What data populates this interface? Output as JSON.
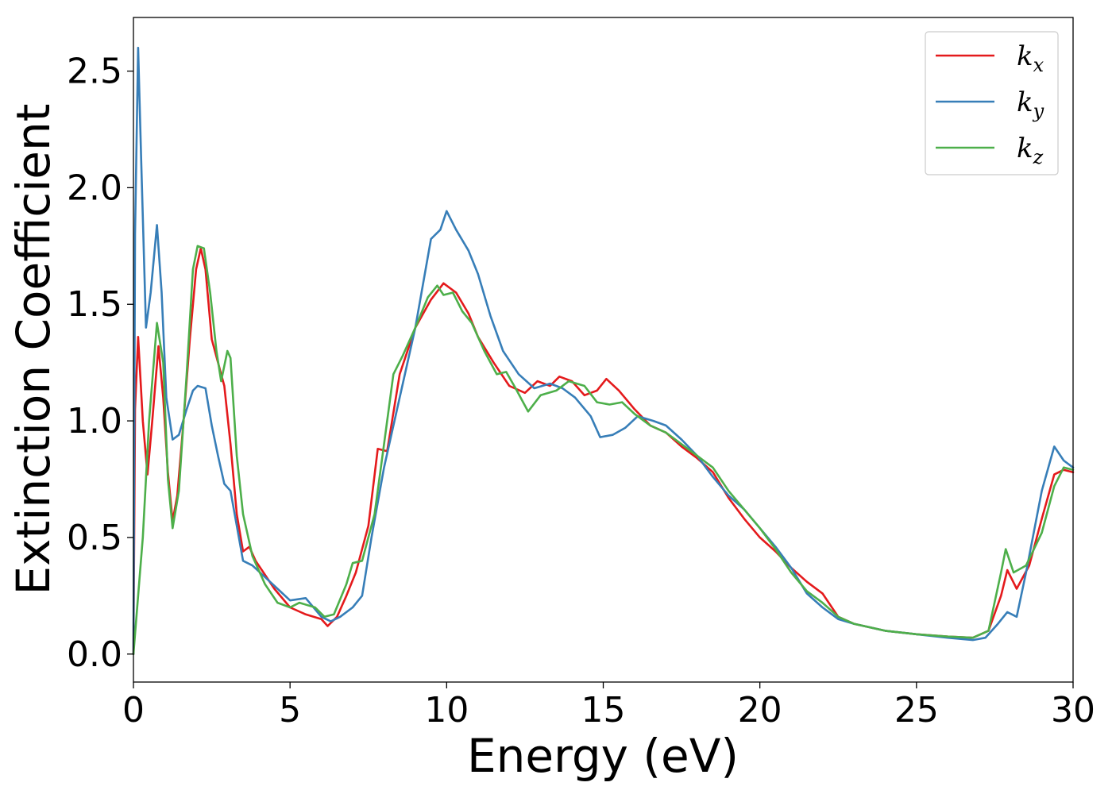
{
  "chart_data": {
    "type": "line",
    "xlabel": "Energy (eV)",
    "ylabel": "Extinction Coefficient",
    "xlim": [
      0,
      30
    ],
    "ylim": [
      -0.12,
      2.73
    ],
    "xticks": [
      "0",
      "5",
      "10",
      "15",
      "20",
      "25",
      "30"
    ],
    "yticks": [
      "0.0",
      "0.5",
      "1.0",
      "1.5",
      "2.0",
      "2.5"
    ],
    "grid": false,
    "legend_position": "top-right",
    "series": [
      {
        "name": "k",
        "subscript": "x",
        "color": "#e41a1c",
        "points": [
          [
            0,
            0.0
          ],
          [
            0.05,
            1.05
          ],
          [
            0.15,
            1.36
          ],
          [
            0.3,
            1.0
          ],
          [
            0.45,
            0.77
          ],
          [
            0.6,
            1.0
          ],
          [
            0.8,
            1.32
          ],
          [
            0.95,
            1.1
          ],
          [
            1.1,
            0.78
          ],
          [
            1.25,
            0.57
          ],
          [
            1.4,
            0.68
          ],
          [
            1.6,
            1.0
          ],
          [
            1.8,
            1.35
          ],
          [
            2.0,
            1.65
          ],
          [
            2.15,
            1.74
          ],
          [
            2.3,
            1.65
          ],
          [
            2.5,
            1.35
          ],
          [
            2.7,
            1.25
          ],
          [
            2.9,
            1.15
          ],
          [
            3.1,
            0.9
          ],
          [
            3.3,
            0.6
          ],
          [
            3.5,
            0.44
          ],
          [
            3.7,
            0.46
          ],
          [
            3.9,
            0.4
          ],
          [
            4.2,
            0.34
          ],
          [
            4.5,
            0.28
          ],
          [
            5.0,
            0.2
          ],
          [
            5.5,
            0.17
          ],
          [
            6.0,
            0.15
          ],
          [
            6.2,
            0.12
          ],
          [
            6.5,
            0.16
          ],
          [
            6.8,
            0.25
          ],
          [
            7.1,
            0.35
          ],
          [
            7.5,
            0.55
          ],
          [
            7.8,
            0.88
          ],
          [
            8.1,
            0.87
          ],
          [
            8.5,
            1.2
          ],
          [
            9.0,
            1.4
          ],
          [
            9.5,
            1.52
          ],
          [
            9.9,
            1.59
          ],
          [
            10.3,
            1.55
          ],
          [
            10.7,
            1.46
          ],
          [
            11.0,
            1.36
          ],
          [
            11.5,
            1.25
          ],
          [
            12.0,
            1.15
          ],
          [
            12.5,
            1.12
          ],
          [
            12.9,
            1.17
          ],
          [
            13.3,
            1.15
          ],
          [
            13.6,
            1.19
          ],
          [
            14.0,
            1.17
          ],
          [
            14.4,
            1.11
          ],
          [
            14.8,
            1.13
          ],
          [
            15.1,
            1.18
          ],
          [
            15.5,
            1.13
          ],
          [
            16.0,
            1.05
          ],
          [
            16.5,
            0.98
          ],
          [
            17.0,
            0.95
          ],
          [
            17.5,
            0.89
          ],
          [
            18.0,
            0.84
          ],
          [
            18.5,
            0.78
          ],
          [
            19.0,
            0.67
          ],
          [
            19.5,
            0.58
          ],
          [
            20.0,
            0.5
          ],
          [
            20.5,
            0.44
          ],
          [
            21.0,
            0.37
          ],
          [
            21.5,
            0.31
          ],
          [
            22.0,
            0.26
          ],
          [
            22.5,
            0.16
          ],
          [
            23.0,
            0.13
          ],
          [
            24.0,
            0.1
          ],
          [
            25.0,
            0.085
          ],
          [
            26.0,
            0.075
          ],
          [
            26.8,
            0.07
          ],
          [
            27.3,
            0.1
          ],
          [
            27.7,
            0.25
          ],
          [
            27.9,
            0.36
          ],
          [
            28.2,
            0.28
          ],
          [
            28.6,
            0.38
          ],
          [
            29.0,
            0.58
          ],
          [
            29.4,
            0.77
          ],
          [
            29.7,
            0.79
          ],
          [
            30.0,
            0.78
          ]
        ]
      },
      {
        "name": "k",
        "subscript": "y",
        "color": "#377eb8",
        "points": [
          [
            0,
            0.0
          ],
          [
            0.05,
            1.8
          ],
          [
            0.15,
            2.6
          ],
          [
            0.25,
            2.1
          ],
          [
            0.4,
            1.4
          ],
          [
            0.55,
            1.55
          ],
          [
            0.75,
            1.84
          ],
          [
            0.9,
            1.55
          ],
          [
            1.05,
            1.1
          ],
          [
            1.25,
            0.92
          ],
          [
            1.45,
            0.94
          ],
          [
            1.7,
            1.05
          ],
          [
            1.9,
            1.13
          ],
          [
            2.05,
            1.15
          ],
          [
            2.3,
            1.14
          ],
          [
            2.5,
            0.98
          ],
          [
            2.7,
            0.85
          ],
          [
            2.9,
            0.73
          ],
          [
            3.1,
            0.7
          ],
          [
            3.3,
            0.55
          ],
          [
            3.5,
            0.4
          ],
          [
            3.8,
            0.38
          ],
          [
            4.2,
            0.33
          ],
          [
            4.6,
            0.28
          ],
          [
            5.0,
            0.23
          ],
          [
            5.5,
            0.24
          ],
          [
            6.0,
            0.16
          ],
          [
            6.3,
            0.14
          ],
          [
            6.6,
            0.16
          ],
          [
            7.0,
            0.2
          ],
          [
            7.3,
            0.25
          ],
          [
            7.6,
            0.5
          ],
          [
            8.0,
            0.8
          ],
          [
            8.5,
            1.1
          ],
          [
            9.0,
            1.4
          ],
          [
            9.5,
            1.78
          ],
          [
            9.8,
            1.82
          ],
          [
            10.0,
            1.9
          ],
          [
            10.3,
            1.82
          ],
          [
            10.7,
            1.73
          ],
          [
            11.0,
            1.63
          ],
          [
            11.4,
            1.45
          ],
          [
            11.8,
            1.3
          ],
          [
            12.3,
            1.2
          ],
          [
            12.8,
            1.14
          ],
          [
            13.3,
            1.16
          ],
          [
            13.7,
            1.14
          ],
          [
            14.1,
            1.1
          ],
          [
            14.6,
            1.02
          ],
          [
            14.9,
            0.93
          ],
          [
            15.3,
            0.94
          ],
          [
            15.7,
            0.97
          ],
          [
            16.1,
            1.02
          ],
          [
            16.6,
            1.0
          ],
          [
            17.0,
            0.98
          ],
          [
            17.5,
            0.92
          ],
          [
            18.0,
            0.85
          ],
          [
            18.5,
            0.76
          ],
          [
            19.0,
            0.68
          ],
          [
            19.5,
            0.62
          ],
          [
            20.0,
            0.54
          ],
          [
            20.5,
            0.46
          ],
          [
            21.0,
            0.37
          ],
          [
            21.5,
            0.26
          ],
          [
            22.0,
            0.2
          ],
          [
            22.5,
            0.15
          ],
          [
            23.0,
            0.13
          ],
          [
            24.0,
            0.1
          ],
          [
            25.0,
            0.085
          ],
          [
            26.0,
            0.07
          ],
          [
            26.8,
            0.06
          ],
          [
            27.2,
            0.07
          ],
          [
            27.6,
            0.13
          ],
          [
            27.9,
            0.18
          ],
          [
            28.2,
            0.16
          ],
          [
            28.5,
            0.35
          ],
          [
            29.0,
            0.7
          ],
          [
            29.4,
            0.89
          ],
          [
            29.7,
            0.83
          ],
          [
            30.0,
            0.8
          ]
        ]
      },
      {
        "name": "k",
        "subscript": "z",
        "color": "#4daf4a",
        "points": [
          [
            0,
            0.0
          ],
          [
            0.3,
            0.5
          ],
          [
            0.5,
            1.0
          ],
          [
            0.75,
            1.42
          ],
          [
            0.95,
            1.25
          ],
          [
            1.1,
            0.75
          ],
          [
            1.25,
            0.54
          ],
          [
            1.45,
            0.7
          ],
          [
            1.7,
            1.2
          ],
          [
            1.9,
            1.65
          ],
          [
            2.05,
            1.75
          ],
          [
            2.25,
            1.74
          ],
          [
            2.45,
            1.55
          ],
          [
            2.65,
            1.3
          ],
          [
            2.8,
            1.17
          ],
          [
            3.0,
            1.3
          ],
          [
            3.1,
            1.27
          ],
          [
            3.3,
            0.85
          ],
          [
            3.5,
            0.6
          ],
          [
            3.8,
            0.42
          ],
          [
            4.2,
            0.3
          ],
          [
            4.6,
            0.22
          ],
          [
            5.0,
            0.2
          ],
          [
            5.3,
            0.22
          ],
          [
            5.8,
            0.2
          ],
          [
            6.1,
            0.16
          ],
          [
            6.4,
            0.17
          ],
          [
            6.8,
            0.3
          ],
          [
            7.0,
            0.39
          ],
          [
            7.3,
            0.4
          ],
          [
            7.7,
            0.6
          ],
          [
            8.0,
            0.9
          ],
          [
            8.3,
            1.2
          ],
          [
            8.6,
            1.28
          ],
          [
            9.0,
            1.4
          ],
          [
            9.4,
            1.53
          ],
          [
            9.7,
            1.58
          ],
          [
            9.9,
            1.54
          ],
          [
            10.2,
            1.55
          ],
          [
            10.5,
            1.47
          ],
          [
            10.8,
            1.42
          ],
          [
            11.2,
            1.3
          ],
          [
            11.6,
            1.2
          ],
          [
            11.9,
            1.21
          ],
          [
            12.2,
            1.14
          ],
          [
            12.6,
            1.04
          ],
          [
            13.0,
            1.11
          ],
          [
            13.5,
            1.13
          ],
          [
            13.9,
            1.17
          ],
          [
            14.4,
            1.15
          ],
          [
            14.8,
            1.08
          ],
          [
            15.2,
            1.07
          ],
          [
            15.6,
            1.08
          ],
          [
            16.0,
            1.03
          ],
          [
            16.5,
            0.98
          ],
          [
            17.0,
            0.95
          ],
          [
            17.5,
            0.9
          ],
          [
            18.0,
            0.85
          ],
          [
            18.5,
            0.8
          ],
          [
            19.0,
            0.7
          ],
          [
            19.5,
            0.62
          ],
          [
            20.0,
            0.54
          ],
          [
            20.5,
            0.45
          ],
          [
            21.0,
            0.35
          ],
          [
            21.5,
            0.27
          ],
          [
            22.0,
            0.22
          ],
          [
            22.5,
            0.16
          ],
          [
            23.0,
            0.13
          ],
          [
            24.0,
            0.1
          ],
          [
            25.0,
            0.085
          ],
          [
            26.0,
            0.075
          ],
          [
            26.8,
            0.07
          ],
          [
            27.3,
            0.1
          ],
          [
            27.7,
            0.35
          ],
          [
            27.85,
            0.45
          ],
          [
            28.1,
            0.35
          ],
          [
            28.5,
            0.38
          ],
          [
            29.0,
            0.52
          ],
          [
            29.4,
            0.72
          ],
          [
            29.7,
            0.8
          ],
          [
            30.0,
            0.79
          ]
        ]
      }
    ]
  }
}
